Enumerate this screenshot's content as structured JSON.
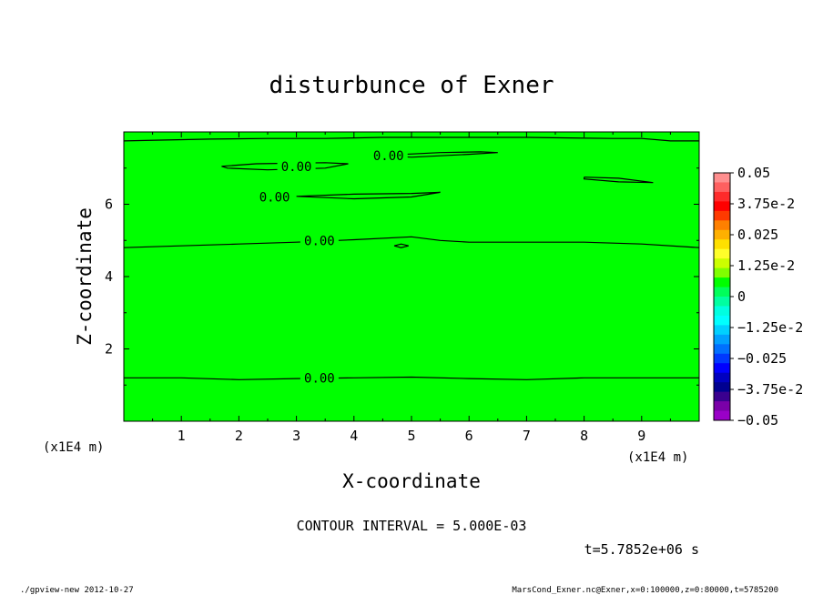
{
  "chart_data": {
    "type": "heatmap",
    "title": "disturbunce of Exner",
    "xlabel": "X-coordinate",
    "ylabel": "Z-coordinate",
    "x_unit": "(x1E4 m)",
    "y_unit": "(x1E4 m)",
    "xlim": [
      0,
      10
    ],
    "ylim": [
      0,
      8
    ],
    "x_ticks": [
      "1",
      "2",
      "3",
      "4",
      "5",
      "6",
      "7",
      "8",
      "9"
    ],
    "y_ticks": [
      "2",
      "4",
      "6"
    ],
    "field_value": 0,
    "field_color": "#00ff00",
    "contour_interval": "CONTOUR INTERVAL = 5.000E-03",
    "time": "t=5.7852e+06 s",
    "contours": [
      {
        "label": "0.00",
        "label_pos": [
          2.2,
          1.2
        ],
        "points": [
          [
            0,
            1.2
          ],
          [
            1,
            1.2
          ],
          [
            2,
            1.15
          ],
          [
            3,
            1.18
          ],
          [
            4,
            1.2
          ],
          [
            5,
            1.22
          ],
          [
            6,
            1.18
          ],
          [
            7,
            1.15
          ],
          [
            8,
            1.2
          ],
          [
            9,
            1.2
          ],
          [
            10,
            1.2
          ]
        ]
      },
      {
        "label": "0.00",
        "label_pos": [
          2.2,
          5.0
        ],
        "points": [
          [
            0,
            4.8
          ],
          [
            1,
            4.85
          ],
          [
            2,
            4.9
          ],
          [
            3,
            4.95
          ],
          [
            4,
            5.02
          ],
          [
            5,
            5.1
          ],
          [
            5.5,
            5.0
          ],
          [
            6,
            4.95
          ],
          [
            7,
            4.95
          ],
          [
            8,
            4.95
          ],
          [
            9,
            4.9
          ],
          [
            10,
            4.8
          ]
        ]
      },
      {
        "label": "",
        "label_pos": null,
        "points": [
          [
            4.7,
            4.85
          ],
          [
            4.82,
            4.9
          ],
          [
            4.95,
            4.85
          ],
          [
            4.82,
            4.8
          ],
          [
            4.7,
            4.85
          ]
        ]
      },
      {
        "label": "0.00",
        "label_pos": [
          0.87,
          7.05
        ],
        "points": [
          [
            1.7,
            7.05
          ],
          [
            2.3,
            7.12
          ],
          [
            3.5,
            7.15
          ],
          [
            3.9,
            7.12
          ],
          [
            3.5,
            7.0
          ],
          [
            2.5,
            6.95
          ],
          [
            1.8,
            7.0
          ],
          [
            1.7,
            7.05
          ]
        ]
      },
      {
        "label": "0.00",
        "label_pos": [
          1.15,
          7.35
        ],
        "points": [
          [
            4.5,
            7.35
          ],
          [
            5.5,
            7.43
          ],
          [
            6.2,
            7.45
          ],
          [
            6.5,
            7.43
          ],
          [
            6.0,
            7.38
          ],
          [
            5.0,
            7.3
          ],
          [
            4.5,
            7.35
          ]
        ]
      },
      {
        "label": "0.00",
        "label_pos": [
          1.42,
          6.2
        ],
        "points": [
          [
            3.0,
            6.22
          ],
          [
            4.0,
            6.28
          ],
          [
            5.0,
            6.3
          ],
          [
            5.5,
            6.33
          ],
          [
            5.0,
            6.2
          ],
          [
            4.0,
            6.15
          ],
          [
            3.0,
            6.22
          ]
        ]
      },
      {
        "label": "",
        "label_pos": null,
        "points": [
          [
            8.0,
            6.75
          ],
          [
            8.6,
            6.72
          ],
          [
            9.2,
            6.6
          ],
          [
            8.6,
            6.62
          ],
          [
            8.0,
            6.7
          ],
          [
            8.0,
            6.75
          ]
        ]
      },
      {
        "label": "",
        "label_pos": null,
        "points": [
          [
            0,
            7.75
          ],
          [
            1.5,
            7.8
          ],
          [
            2.5,
            7.82
          ],
          [
            3.5,
            7.82
          ],
          [
            4.5,
            7.85
          ],
          [
            6.0,
            7.85
          ],
          [
            7.0,
            7.85
          ],
          [
            8.5,
            7.82
          ],
          [
            9.0,
            7.82
          ],
          [
            9.5,
            7.75
          ],
          [
            10,
            7.75
          ]
        ]
      }
    ],
    "colorbar": {
      "tick_labels": [
        "0.05",
        "3.75e-2",
        "0.025",
        "1.25e-2",
        "0",
        "−1.25e-2",
        "−0.025",
        "−3.75e-2",
        "−0.05"
      ],
      "colors_top_to_bottom": [
        "#ff8f8f",
        "#ff6060",
        "#ff2b2b",
        "#ff0000",
        "#ff3a00",
        "#ff8000",
        "#ffb000",
        "#ffe000",
        "#ffff2a",
        "#ccff00",
        "#80ff00",
        "#00ff00",
        "#00ff5a",
        "#00ffa0",
        "#00ffe0",
        "#00ffff",
        "#00d0ff",
        "#00a0ff",
        "#0070ff",
        "#0038ff",
        "#0000ff",
        "#0000c0",
        "#000090",
        "#3a008f",
        "#7a00a8",
        "#9a00c8"
      ]
    }
  },
  "footer": {
    "left": "./gpview-new   2012-10-27",
    "right": "MarsCond_Exner.nc@Exner,x=0:100000,z=0:80000,t=5785200"
  }
}
